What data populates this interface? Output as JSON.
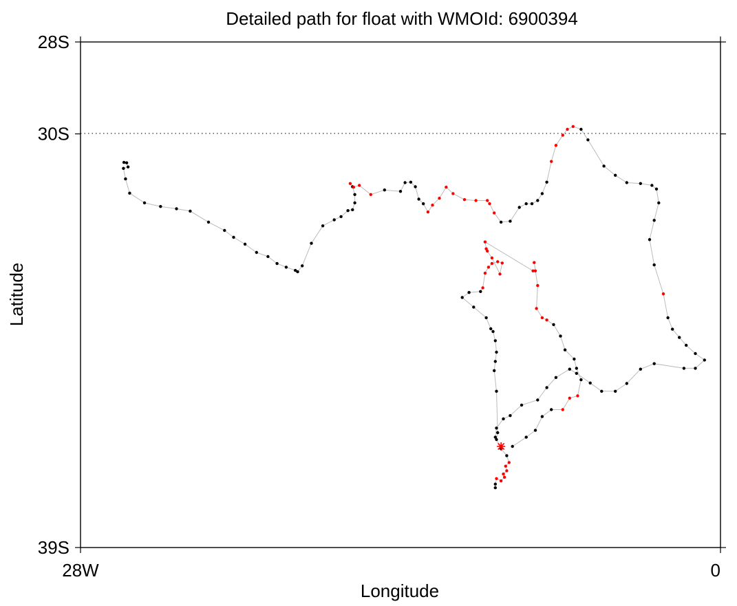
{
  "chart_data": {
    "type": "scatter",
    "title": "Detailed path for float with WMOId: 6900394",
    "xlabel": "Longitude",
    "ylabel": "Latitude",
    "xlim": [
      -28,
      0
    ],
    "ylim": [
      -39,
      -28
    ],
    "x_ticks": [
      {
        "value": -28,
        "label": "28W"
      },
      {
        "value": 0,
        "label": "0"
      }
    ],
    "y_ticks": [
      {
        "value": -28,
        "label": "28S"
      },
      {
        "value": -30,
        "label": "30S"
      },
      {
        "value": -39,
        "label": "39S"
      }
    ],
    "reference_line": {
      "lat": -30,
      "style": "dotted"
    },
    "colors": {
      "normal": "#000000",
      "flagged": "#ff0000",
      "path": "#bbbbbb",
      "start_marker": "#ff0000"
    },
    "start_marker": {
      "lon": -9.6,
      "lat": -36.8,
      "symbol": "asterisk"
    },
    "track": [
      [
        -26.1,
        -30.62,
        0
      ],
      [
        -25.98,
        -30.63,
        0
      ],
      [
        -25.92,
        -30.72,
        0
      ],
      [
        -26.12,
        -30.75,
        0
      ],
      [
        -26.03,
        -30.98,
        0
      ],
      [
        -25.85,
        -31.29,
        0
      ],
      [
        -25.2,
        -31.5,
        0
      ],
      [
        -24.5,
        -31.58,
        0
      ],
      [
        -23.8,
        -31.63,
        0
      ],
      [
        -23.2,
        -31.68,
        0
      ],
      [
        -22.4,
        -31.92,
        0
      ],
      [
        -21.7,
        -32.1,
        0
      ],
      [
        -21.3,
        -32.25,
        0
      ],
      [
        -20.8,
        -32.4,
        0
      ],
      [
        -20.3,
        -32.58,
        0
      ],
      [
        -19.8,
        -32.67,
        0
      ],
      [
        -19.4,
        -32.82,
        0
      ],
      [
        -19.0,
        -32.9,
        0
      ],
      [
        -18.6,
        -32.97,
        0
      ],
      [
        -18.5,
        -33.0,
        0
      ],
      [
        -18.3,
        -32.87,
        0
      ],
      [
        -17.9,
        -32.38,
        0
      ],
      [
        -17.4,
        -32.0,
        0
      ],
      [
        -16.9,
        -31.87,
        0
      ],
      [
        -16.6,
        -31.8,
        0
      ],
      [
        -16.3,
        -31.67,
        0
      ],
      [
        -16.1,
        -31.65,
        0
      ],
      [
        -16.0,
        -31.5,
        0
      ],
      [
        -16.0,
        -31.32,
        0
      ],
      [
        -16.1,
        -31.15,
        0
      ],
      [
        -16.2,
        -31.08,
        1
      ],
      [
        -16.05,
        -31.16,
        1
      ],
      [
        -15.8,
        -31.12,
        1
      ],
      [
        -15.3,
        -31.32,
        1
      ],
      [
        -14.7,
        -31.22,
        0
      ],
      [
        -14.0,
        -31.25,
        0
      ],
      [
        -13.8,
        -31.06,
        0
      ],
      [
        -13.55,
        -31.05,
        0
      ],
      [
        -13.35,
        -31.15,
        0
      ],
      [
        -13.2,
        -31.42,
        0
      ],
      [
        -13.0,
        -31.52,
        0
      ],
      [
        -12.8,
        -31.7,
        1
      ],
      [
        -12.6,
        -31.55,
        1
      ],
      [
        -12.3,
        -31.4,
        1
      ],
      [
        -12.0,
        -31.16,
        1
      ],
      [
        -11.7,
        -31.3,
        1
      ],
      [
        -11.2,
        -31.43,
        1
      ],
      [
        -10.7,
        -31.45,
        1
      ],
      [
        -10.2,
        -31.45,
        1
      ],
      [
        -10.1,
        -31.52,
        1
      ],
      [
        -9.9,
        -31.72,
        1
      ],
      [
        -9.6,
        -31.92,
        0
      ],
      [
        -9.2,
        -31.9,
        0
      ],
      [
        -8.8,
        -31.6,
        0
      ],
      [
        -8.5,
        -31.52,
        0
      ],
      [
        -8.25,
        -31.52,
        0
      ],
      [
        -8.0,
        -31.45,
        0
      ],
      [
        -7.8,
        -31.3,
        0
      ],
      [
        -7.6,
        -31.05,
        0
      ],
      [
        -7.4,
        -30.6,
        1
      ],
      [
        -7.2,
        -30.25,
        1
      ],
      [
        -6.9,
        -30.03,
        1
      ],
      [
        -6.7,
        -29.9,
        1
      ],
      [
        -6.45,
        -29.84,
        1
      ],
      [
        -6.1,
        -29.9,
        0
      ],
      [
        -5.8,
        -30.13,
        0
      ],
      [
        -5.1,
        -30.7,
        0
      ],
      [
        -4.6,
        -30.9,
        0
      ],
      [
        -4.1,
        -31.06,
        0
      ],
      [
        -3.5,
        -31.08,
        0
      ],
      [
        -3.0,
        -31.12,
        0
      ],
      [
        -2.8,
        -31.2,
        0
      ],
      [
        -2.7,
        -31.5,
        0
      ],
      [
        -2.9,
        -31.88,
        0
      ],
      [
        -3.1,
        -32.3,
        0
      ],
      [
        -2.9,
        -32.85,
        0
      ],
      [
        -2.5,
        -33.48,
        1
      ],
      [
        -2.3,
        -34.0,
        0
      ],
      [
        -2.1,
        -34.25,
        0
      ],
      [
        -1.8,
        -34.43,
        0
      ],
      [
        -1.5,
        -34.6,
        0
      ],
      [
        -1.1,
        -34.78,
        0
      ],
      [
        -0.7,
        -34.92,
        0
      ],
      [
        -1.1,
        -35.1,
        0
      ],
      [
        -1.6,
        -35.1,
        0
      ],
      [
        -2.9,
        -35.0,
        0
      ],
      [
        -3.5,
        -35.12,
        0
      ],
      [
        -4.1,
        -35.43,
        0
      ],
      [
        -4.6,
        -35.6,
        0
      ],
      [
        -5.2,
        -35.6,
        0
      ],
      [
        -5.7,
        -35.42,
        0
      ],
      [
        -6.3,
        -35.21,
        0
      ],
      [
        -6.6,
        -35.12,
        0
      ],
      [
        -7.2,
        -35.3,
        0
      ],
      [
        -7.6,
        -35.52,
        0
      ],
      [
        -8.0,
        -35.79,
        0
      ],
      [
        -8.7,
        -35.9,
        0
      ],
      [
        -9.2,
        -36.13,
        0
      ],
      [
        -9.5,
        -36.2,
        0
      ],
      [
        -9.8,
        -36.4,
        0
      ],
      [
        -9.85,
        -36.6,
        0
      ],
      [
        -9.6,
        -36.85,
        0
      ],
      [
        -9.35,
        -37.0,
        0
      ],
      [
        -9.25,
        -37.15,
        1
      ],
      [
        -9.4,
        -37.23,
        1
      ],
      [
        -9.35,
        -37.33,
        1
      ],
      [
        -9.5,
        -37.4,
        1
      ],
      [
        -9.45,
        -37.47,
        1
      ],
      [
        -9.6,
        -37.55,
        1
      ],
      [
        -9.8,
        -37.5,
        1
      ],
      [
        -9.85,
        -37.62,
        0
      ],
      [
        -9.85,
        -37.7,
        0
      ]
    ],
    "track2": [
      [
        -9.8,
        -36.65,
        0
      ],
      [
        -9.75,
        -36.5,
        0
      ],
      [
        -9.8,
        -35.6,
        0
      ],
      [
        -9.9,
        -35.15,
        0
      ],
      [
        -9.85,
        -34.95,
        0
      ],
      [
        -9.8,
        -34.75,
        0
      ],
      [
        -9.85,
        -34.5,
        0
      ],
      [
        -9.95,
        -34.3,
        0
      ],
      [
        -10.05,
        -34.24,
        0
      ],
      [
        -10.25,
        -34.0,
        0
      ],
      [
        -10.8,
        -33.77,
        0
      ],
      [
        -11.3,
        -33.56,
        0
      ],
      [
        -11.0,
        -33.45,
        0
      ],
      [
        -10.5,
        -33.43,
        0
      ],
      [
        -10.4,
        -33.35,
        1
      ],
      [
        -10.3,
        -33.03,
        1
      ],
      [
        -10.15,
        -32.9,
        1
      ],
      [
        -10.0,
        -32.82,
        1
      ],
      [
        -9.75,
        -32.78,
        1
      ],
      [
        -9.55,
        -32.81,
        1
      ],
      [
        -9.65,
        -33.05,
        1
      ],
      [
        -10.0,
        -32.7,
        1
      ],
      [
        -10.2,
        -32.55,
        1
      ],
      [
        -10.25,
        -32.5,
        1
      ],
      [
        -10.3,
        -32.35,
        1
      ],
      [
        -8.2,
        -32.98,
        1
      ],
      [
        -8.1,
        -32.98,
        1
      ],
      [
        -8.15,
        -32.8,
        1
      ],
      [
        -8.0,
        -33.3,
        1
      ],
      [
        -8.05,
        -33.8,
        1
      ],
      [
        -7.8,
        -34.0,
        1
      ],
      [
        -7.6,
        -34.05,
        1
      ],
      [
        -7.3,
        -34.15,
        0
      ],
      [
        -7.0,
        -34.4,
        0
      ],
      [
        -6.8,
        -34.7,
        0
      ],
      [
        -6.4,
        -34.9,
        0
      ],
      [
        -6.3,
        -35.1,
        0
      ],
      [
        -6.1,
        -35.35,
        0
      ],
      [
        -6.25,
        -35.7,
        1
      ],
      [
        -6.6,
        -35.75,
        1
      ],
      [
        -6.9,
        -36.0,
        1
      ],
      [
        -7.4,
        -36.0,
        0
      ],
      [
        -7.8,
        -36.15,
        0
      ],
      [
        -8.1,
        -36.45,
        0
      ],
      [
        -8.5,
        -36.6,
        0
      ],
      [
        -9.1,
        -36.8,
        0
      ]
    ]
  }
}
